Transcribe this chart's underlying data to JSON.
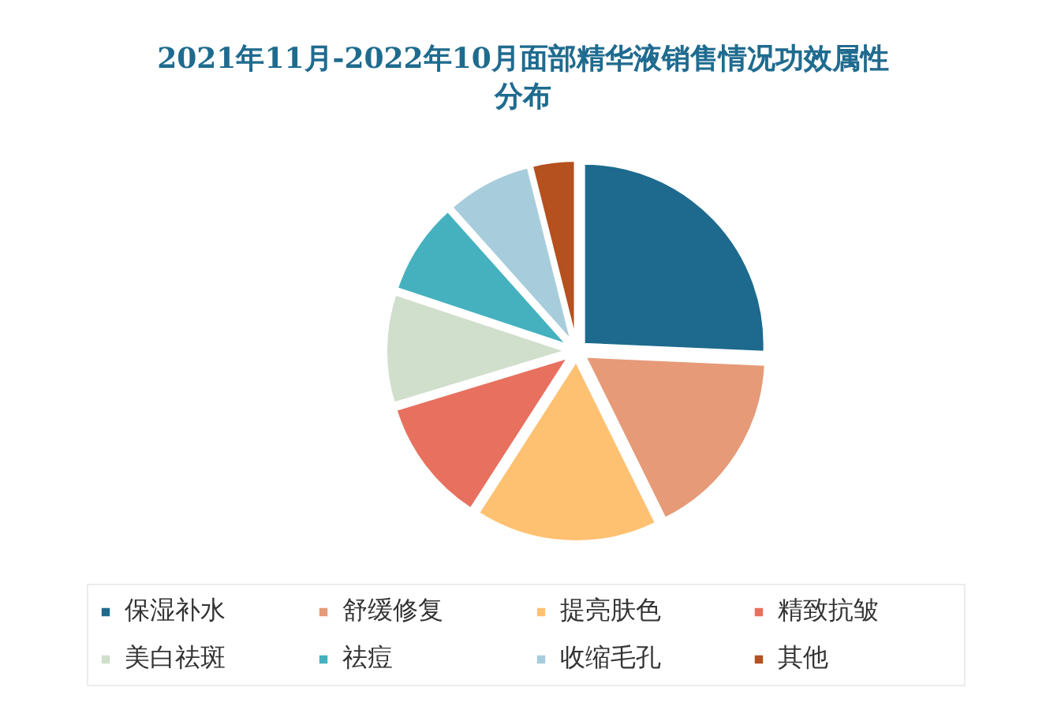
{
  "chart_data": {
    "type": "pie",
    "title": "2021年11月-2022年10月面部精华液销售情况功效属性分布",
    "categories": [
      "保湿补水",
      "舒缓修复",
      "提亮肤色",
      "精致抗皱",
      "美白祛斑",
      "祛痘",
      "收缩毛孔",
      "其他"
    ],
    "values": [
      25.7,
      17.0,
      16.4,
      11.2,
      9.8,
      8.3,
      7.7,
      3.9
    ],
    "colors": [
      "#1d6a8e",
      "#e69a78",
      "#fec171",
      "#e8705e",
      "#d0dfcc",
      "#45b1bf",
      "#a7cddc",
      "#b5501f"
    ],
    "legend": "bottom"
  }
}
